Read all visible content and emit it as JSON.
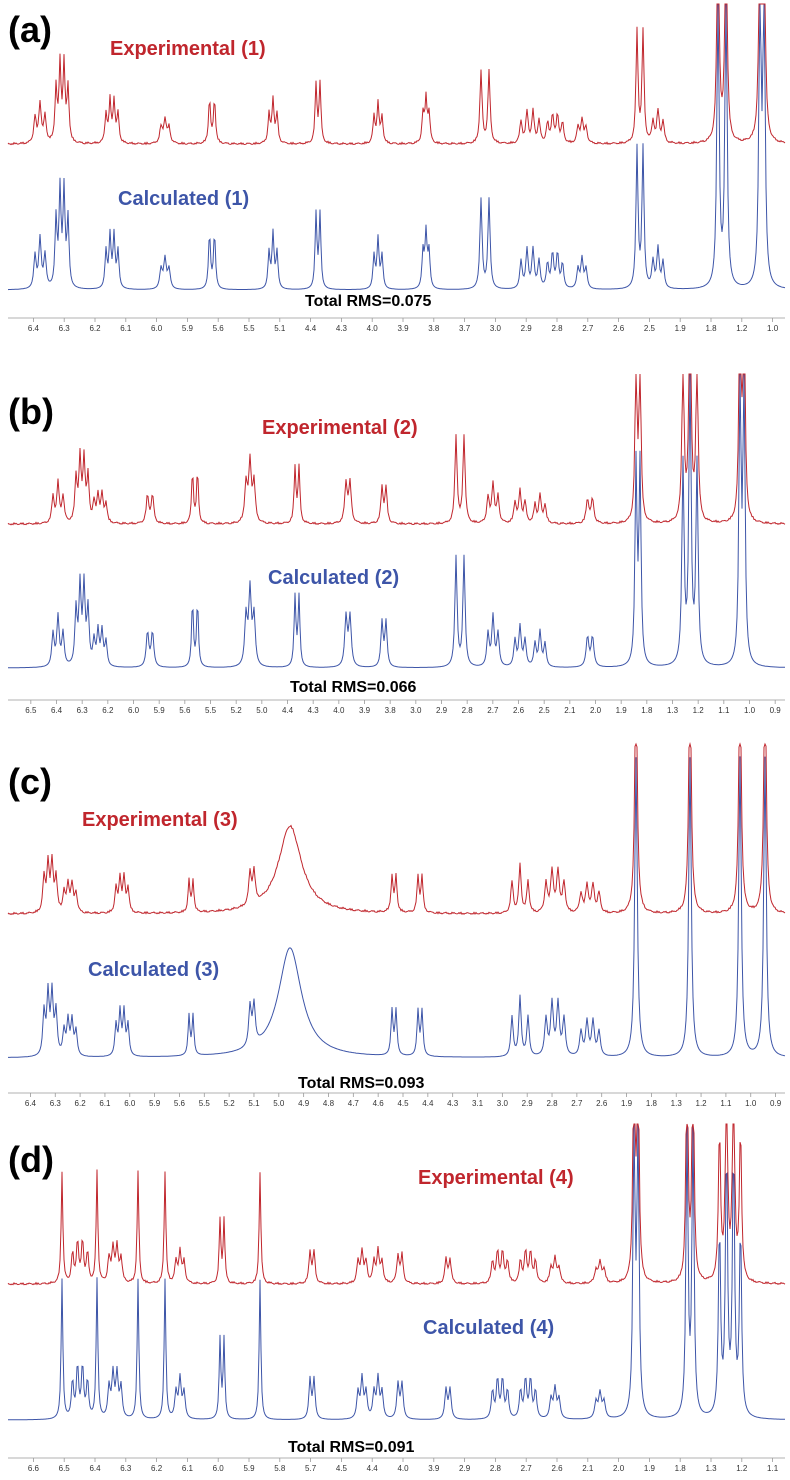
{
  "panels": [
    {
      "label": "(a)",
      "experimental": "Experimental (1)",
      "calculated": "Calculated (1)",
      "rms": "Total RMS=0.075",
      "ticks": [
        "6.4",
        "6.3",
        "6.2",
        "6.1",
        "6.0",
        "5.9",
        "5.6",
        "5.5",
        "5.1",
        "4.4",
        "4.3",
        "4.0",
        "3.9",
        "3.8",
        "3.7",
        "3.0",
        "2.9",
        "2.8",
        "2.7",
        "2.6",
        "2.5",
        "1.9",
        "1.8",
        "1.2",
        "1.0"
      ]
    },
    {
      "label": "(b)",
      "experimental": "Experimental (2)",
      "calculated": "Calculated (2)",
      "rms": "Total RMS=0.066",
      "ticks": [
        "6.5",
        "6.4",
        "6.3",
        "6.2",
        "6.0",
        "5.9",
        "5.6",
        "5.5",
        "5.2",
        "5.0",
        "4.4",
        "4.3",
        "4.0",
        "3.9",
        "3.8",
        "3.0",
        "2.9",
        "2.8",
        "2.7",
        "2.6",
        "2.5",
        "2.1",
        "2.0",
        "1.9",
        "1.8",
        "1.3",
        "1.2",
        "1.1",
        "1.0",
        "0.9"
      ]
    },
    {
      "label": "(c)",
      "experimental": "Experimental (3)",
      "calculated": "Calculated (3)",
      "rms": "Total RMS=0.093",
      "ticks": [
        "6.4",
        "6.3",
        "6.2",
        "6.1",
        "6.0",
        "5.9",
        "5.6",
        "5.5",
        "5.2",
        "5.1",
        "5.0",
        "4.9",
        "4.8",
        "4.7",
        "4.6",
        "4.5",
        "4.4",
        "4.3",
        "3.1",
        "3.0",
        "2.9",
        "2.8",
        "2.7",
        "2.6",
        "1.9",
        "1.8",
        "1.3",
        "1.2",
        "1.1",
        "1.0",
        "0.9"
      ]
    },
    {
      "label": "(d)",
      "experimental": "Experimental (4)",
      "calculated": "Calculated (4)",
      "rms": "Total RMS=0.091",
      "ticks": [
        "6.6",
        "6.5",
        "6.4",
        "6.3",
        "6.2",
        "6.1",
        "6.0",
        "5.9",
        "5.8",
        "5.7",
        "4.5",
        "4.4",
        "4.0",
        "3.9",
        "2.9",
        "2.8",
        "2.7",
        "2.6",
        "2.1",
        "2.0",
        "1.9",
        "1.8",
        "1.3",
        "1.2",
        "1.1"
      ]
    }
  ]
}
